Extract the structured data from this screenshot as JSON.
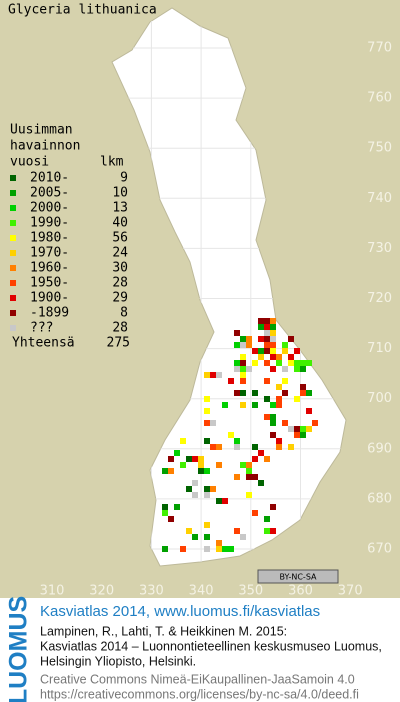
{
  "title": "Glyceria lithuanica",
  "legend": {
    "heading": [
      "Uusimman",
      "havainnon",
      "vuosi"
    ],
    "count_heading": "lkm",
    "rows": [
      {
        "label": "2010-",
        "count": 9,
        "color": "#006400"
      },
      {
        "label": "2005-",
        "count": 10,
        "color": "#00a000"
      },
      {
        "label": "2000-",
        "count": 13,
        "color": "#00d000"
      },
      {
        "label": "1990-",
        "count": 40,
        "color": "#40f000"
      },
      {
        "label": "1980-",
        "count": 56,
        "color": "#ffff00"
      },
      {
        "label": "1970-",
        "count": 24,
        "color": "#ffd000"
      },
      {
        "label": "1960-",
        "count": 30,
        "color": "#ff8000"
      },
      {
        "label": "1950-",
        "count": 28,
        "color": "#ff4000"
      },
      {
        "label": "1900-",
        "count": 29,
        "color": "#e00000"
      },
      {
        "label": "-1899",
        "count": 8,
        "color": "#900000"
      },
      {
        "label": "???",
        "count": 28,
        "color": "#c8c8c8"
      }
    ],
    "total_label": "Yhteensä",
    "total": 275
  },
  "map_axes": {
    "yticks": [
      770,
      760,
      750,
      740,
      730,
      720,
      710,
      700,
      690,
      680,
      670
    ],
    "xticks": [
      310,
      320,
      330,
      340,
      350,
      360,
      370
    ]
  },
  "license_badge": "BY-NC-SA",
  "footer": {
    "logo": "LUOMUS",
    "headline": "Kasviatlas 2014, www.luomus.fi/kasviatlas",
    "citation": [
      "Lampinen, R., Lahti, T. & Heikkinen M. 2015:",
      "Kasviatlas 2014 – Luonnontieteellinen keskusmuseo Luomus,",
      "Helsingin Yliopisto, Helsinki."
    ],
    "license": [
      "Creative Commons Nimeä-EiKaupallinen-JaaSamoin 4.0",
      "https://creativecommons.org/licenses/by-nc-sa/4.0/deed.fi"
    ]
  }
}
